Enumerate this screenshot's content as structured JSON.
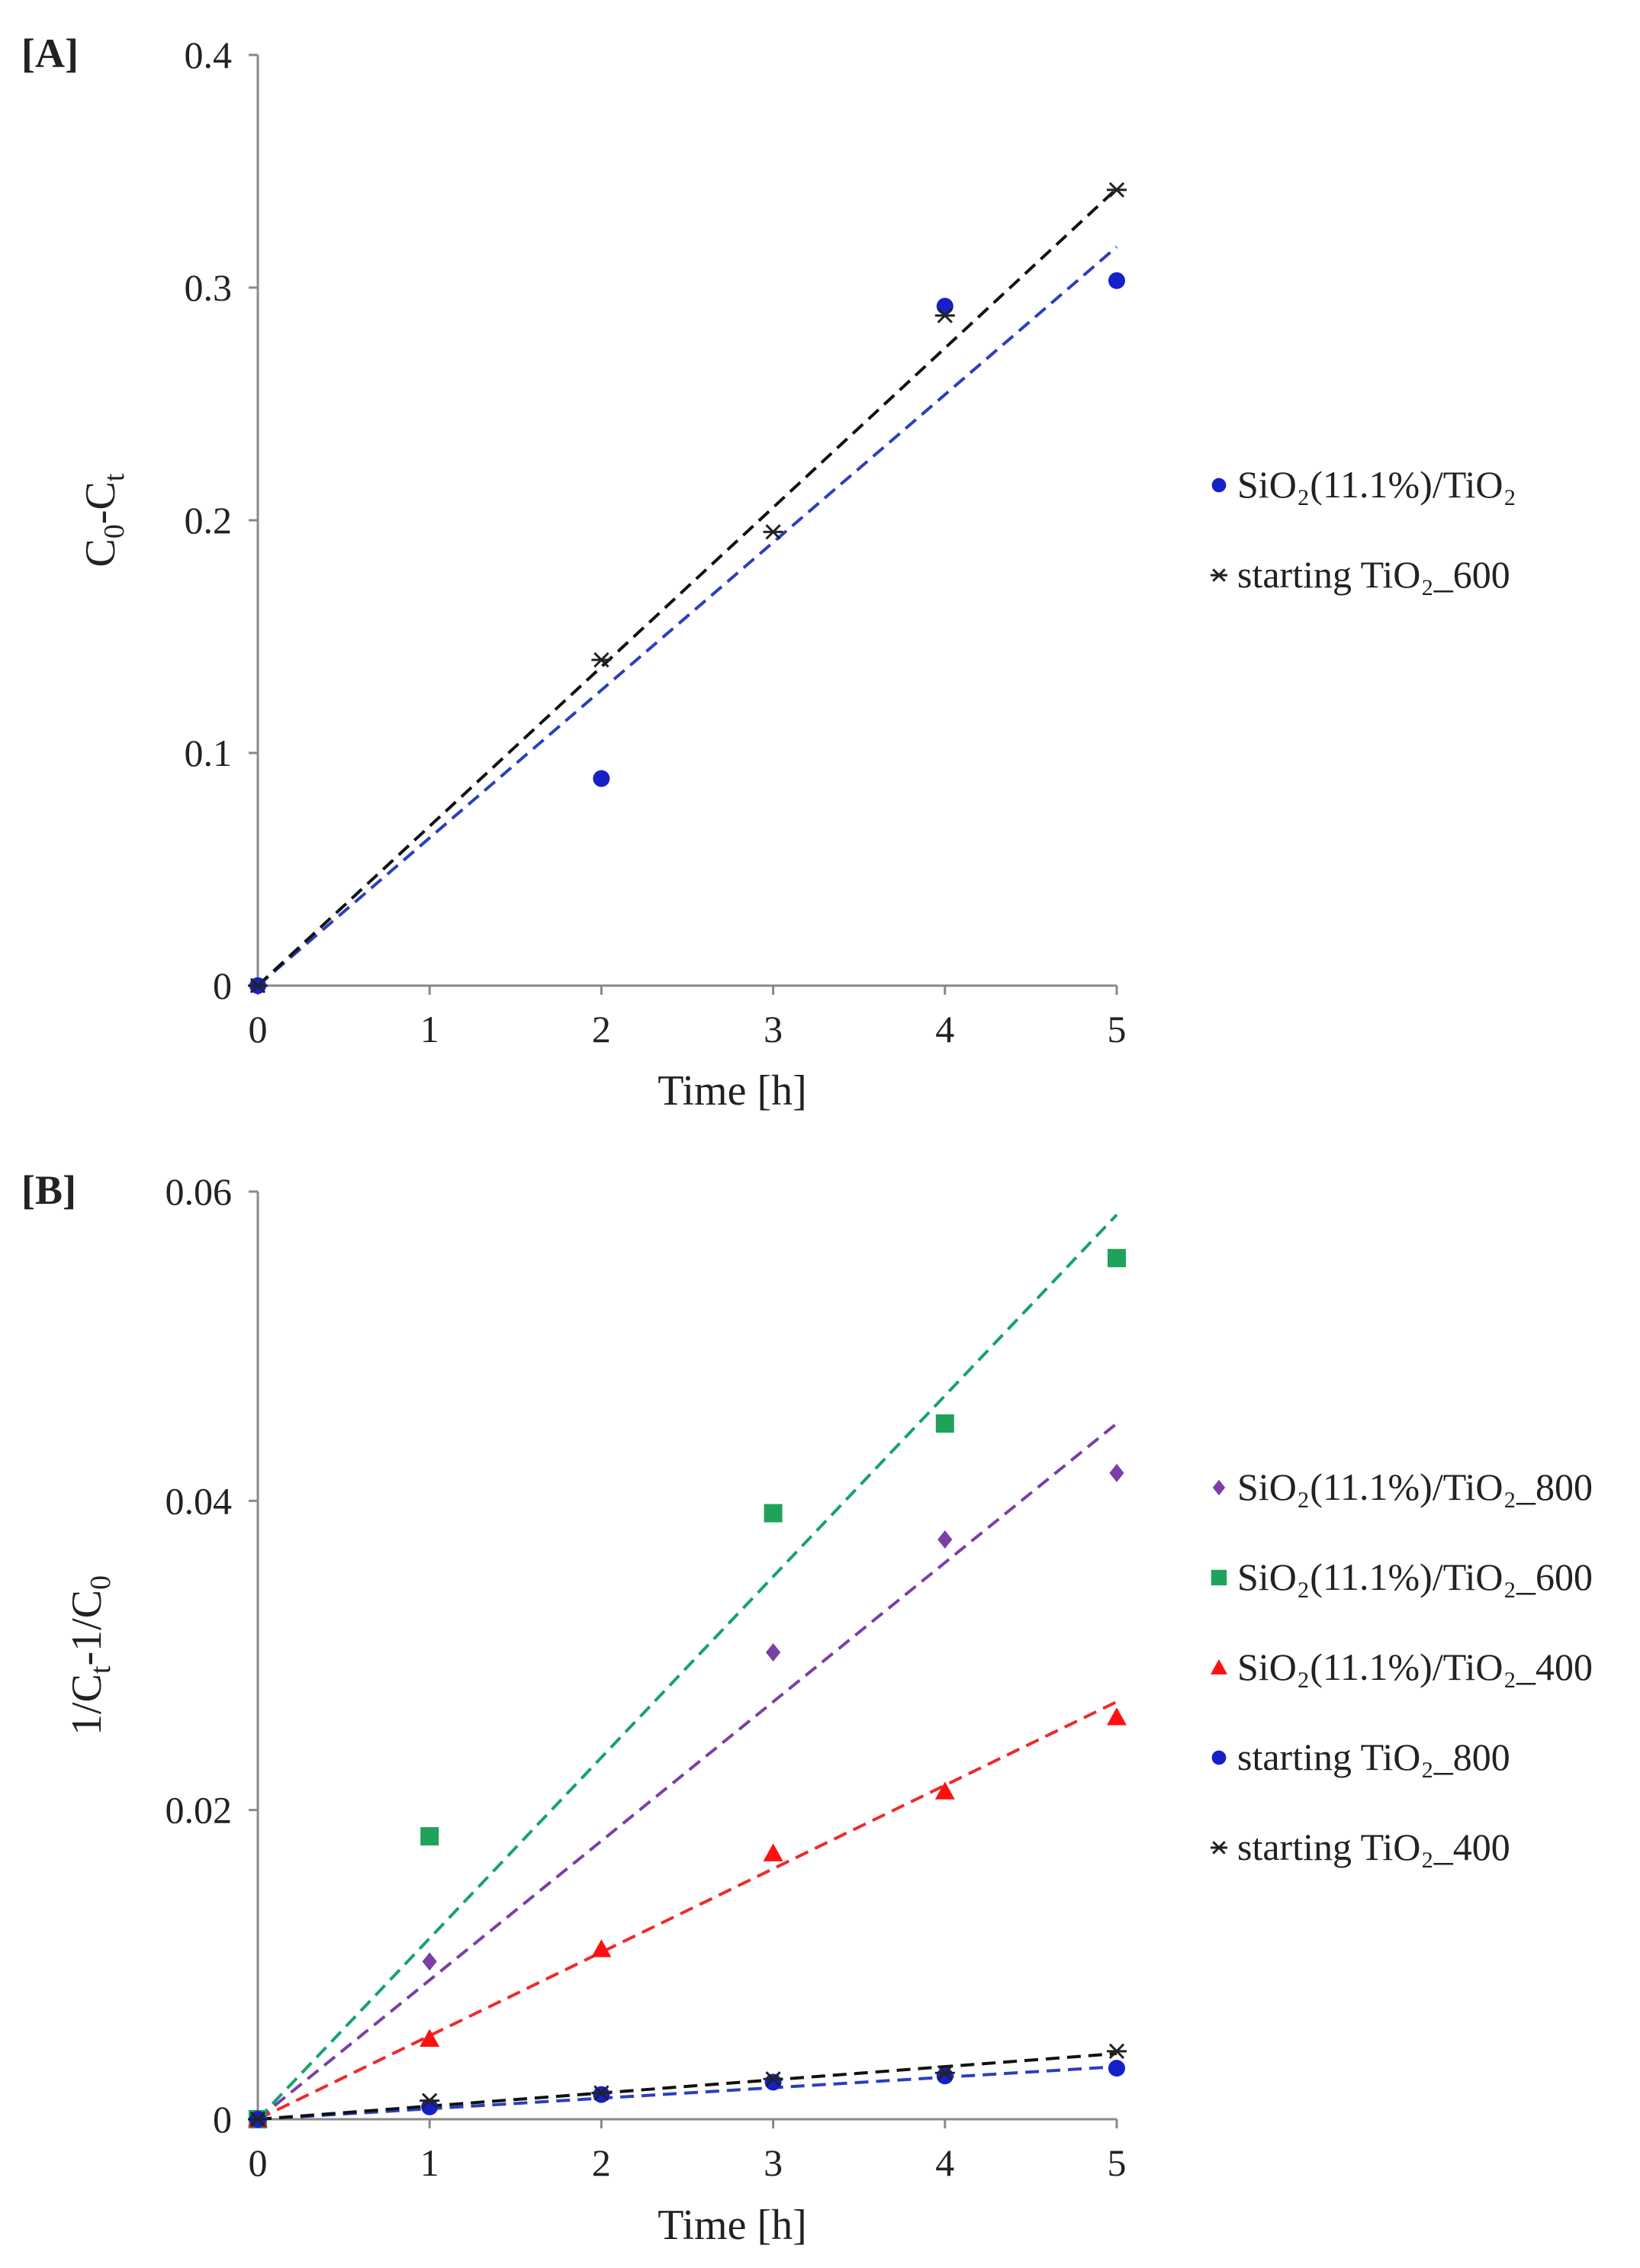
{
  "chart_data": [
    {
      "type": "scatter",
      "panel_label": "[A]",
      "xlabel": "Time [h]",
      "ylabel": "C0-Ct",
      "ylabel_parts": {
        "main1": "C",
        "sub1": "0",
        "mid": "-C",
        "sub2": "t",
        "end": ""
      },
      "xlim": [
        0,
        5
      ],
      "ylim": [
        0,
        0.4
      ],
      "xticks": [
        "0",
        "1",
        "2",
        "3",
        "4",
        "5"
      ],
      "yticks": [
        "0",
        "0.1",
        "0.2",
        "0.3",
        "0.4"
      ],
      "legend_position": "right",
      "series": [
        {
          "name": "SiO₂(11.1%)/TiO₂",
          "marker": "circle",
          "color": "#1520c8",
          "trend_color": "#2b3fbd",
          "x": [
            0,
            2,
            4,
            5
          ],
          "y": [
            0,
            0.089,
            0.292,
            0.303
          ],
          "trend": [
            0,
            0.0635
          ]
        },
        {
          "name": "starting  TiO₂_600",
          "marker": "asterisk",
          "color": "#222222",
          "trend_color": "#111111",
          "x": [
            0,
            2,
            3,
            4,
            5
          ],
          "y": [
            0,
            0.14,
            0.195,
            0.288,
            0.342
          ],
          "trend": [
            0,
            0.0685
          ]
        }
      ]
    },
    {
      "type": "scatter",
      "panel_label": "[B]",
      "xlabel": "Time [h]",
      "ylabel": "1/Ct-1/C0",
      "ylabel_parts": {
        "main1": "1/C",
        "sub1": "t",
        "mid": "-1/C",
        "sub2": "0",
        "end": ""
      },
      "xlim": [
        0,
        5
      ],
      "ylim": [
        0,
        0.06
      ],
      "xticks": [
        "0",
        "1",
        "2",
        "3",
        "4",
        "5"
      ],
      "yticks": [
        "0",
        "0.02",
        "0.04",
        "0.06"
      ],
      "legend_position": "right",
      "series": [
        {
          "name": "SiO₂(11.1%)/TiO₂_800",
          "marker": "diamond",
          "color": "#7b3fa6",
          "trend_color": "#7b3fa6",
          "x": [
            0,
            1,
            3,
            4,
            5
          ],
          "y": [
            0,
            0.0102,
            0.0302,
            0.0375,
            0.0418
          ],
          "trend": [
            0,
            0.009
          ]
        },
        {
          "name": "SiO₂(11.1%)/TiO₂_600",
          "marker": "square",
          "color": "#1fa35a",
          "trend_color": "#16a078",
          "x": [
            0,
            1,
            3,
            4,
            5
          ],
          "y": [
            0,
            0.0183,
            0.0392,
            0.045,
            0.0557
          ],
          "trend": [
            0,
            0.0117
          ]
        },
        {
          "name": "SiO₂(11.1%)/TiO₂_400",
          "marker": "triangle",
          "color": "#ff1010",
          "trend_color": "#ef2a2a",
          "x": [
            0,
            1,
            2,
            3,
            4,
            5
          ],
          "y": [
            0,
            0.0052,
            0.011,
            0.0172,
            0.0212,
            0.026
          ],
          "trend": [
            0,
            0.0054
          ]
        },
        {
          "name": "starting  TiO₂_800",
          "marker": "circle",
          "color": "#1520c8",
          "trend_color": "#2b3fbd",
          "x": [
            0,
            1,
            2,
            3,
            4,
            5
          ],
          "y": [
            0,
            0.0008,
            0.0016,
            0.0024,
            0.0028,
            0.0033
          ],
          "trend": [
            0,
            0.00068
          ]
        },
        {
          "name": "starting  TiO₂_400",
          "marker": "asterisk",
          "color": "#222222",
          "trend_color": "#111111",
          "x": [
            0,
            1,
            2,
            3,
            4,
            5
          ],
          "y": [
            0,
            0.0012,
            0.0017,
            0.0026,
            0.003,
            0.0044
          ],
          "trend": [
            0,
            0.00085
          ]
        }
      ]
    }
  ]
}
